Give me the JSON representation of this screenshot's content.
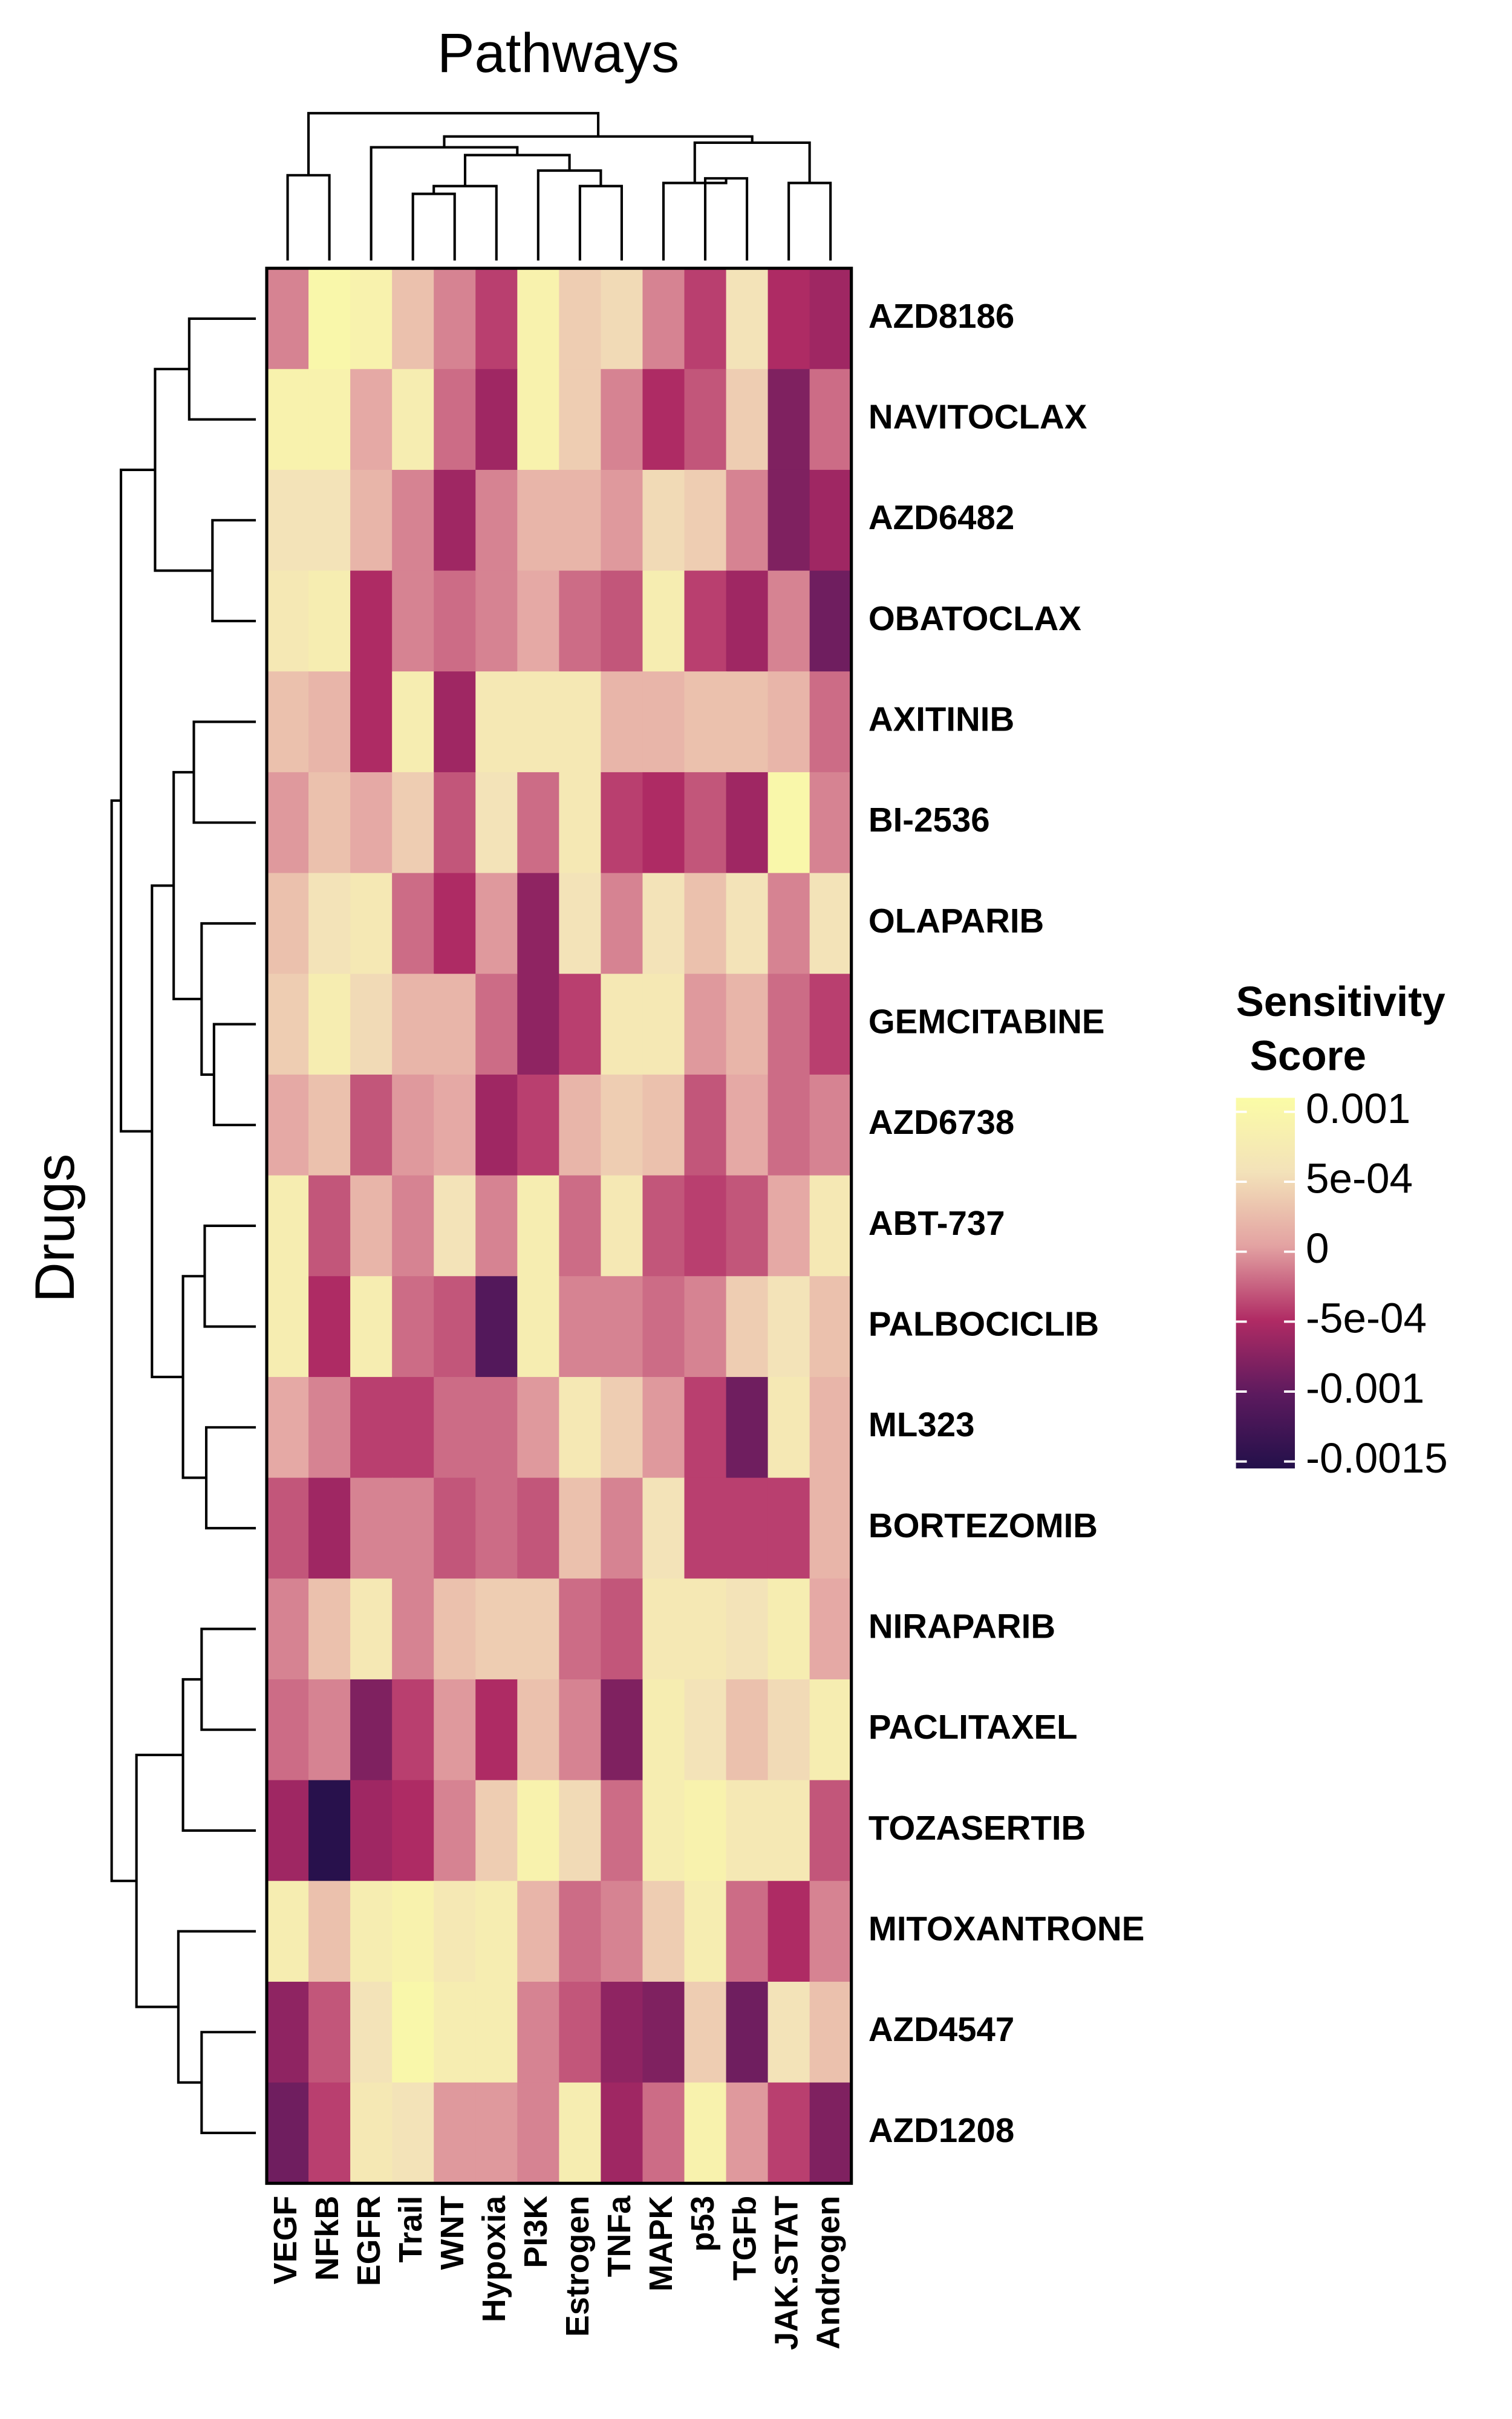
{
  "chart_data": {
    "type": "heatmap",
    "title": "Pathways",
    "y_label": "Drugs",
    "legend_title": [
      "Sensitivity",
      "Score"
    ],
    "x": [
      "VEGF",
      "NFkB",
      "EGFR",
      "Trail",
      "WNT",
      "Hypoxia",
      "PI3K",
      "Estrogen",
      "TNFa",
      "MAPK",
      "p53",
      "TGFb",
      "JAK.STAT",
      "Androgen"
    ],
    "y": [
      "AZD8186",
      "NAVITOCLAX",
      "AZD6482",
      "OBATOCLAX",
      "AXITINIB",
      "BI-2536",
      "OLAPARIB",
      "GEMCITABINE",
      "AZD6738",
      "ABT-737",
      "PALBOCICLIB",
      "ML323",
      "BORTEZOMIB",
      "NIRAPARIB",
      "PACLITAXEL",
      "TOZASERTIB",
      "MITOXANTRONE",
      "AZD4547",
      "AZD1208"
    ],
    "values": [
      [
        -0.0001,
        0.001,
        0.0009,
        0.0003,
        -0.0001,
        -0.0004,
        0.0009,
        0.0004,
        0.0005,
        -0.0001,
        -0.0004,
        0.0006,
        -0.0005,
        -0.0006
      ],
      [
        0.0009,
        0.0009,
        0.0001,
        0.0008,
        -0.0002,
        -0.0006,
        0.0009,
        0.0004,
        -0.0001,
        -0.0005,
        -0.0003,
        0.0004,
        -0.0008,
        -0.0002
      ],
      [
        0.0006,
        0.0006,
        0.0002,
        -0.0001,
        -0.0006,
        -0.0001,
        0.0002,
        0.0002,
        0,
        0.0005,
        0.0004,
        -0.0001,
        -0.0008,
        -0.0006
      ],
      [
        0.0007,
        0.0008,
        -0.0005,
        -0.0001,
        -0.0002,
        -0.0001,
        0.0001,
        -0.0002,
        -0.0003,
        0.0008,
        -0.0004,
        -0.0006,
        -0.0001,
        -0.0009
      ],
      [
        0.0003,
        0.0002,
        -0.0005,
        0.0008,
        -0.0006,
        0.0007,
        0.0007,
        0.0007,
        0.0002,
        0.0002,
        0.0003,
        0.0003,
        0.0002,
        -0.0002
      ],
      [
        0,
        0.0003,
        0.0001,
        0.0004,
        -0.0003,
        0.0006,
        -0.0002,
        0.0007,
        -0.0004,
        -0.0005,
        -0.0003,
        -0.0006,
        0.001,
        -0.0001
      ],
      [
        0.0003,
        0.0006,
        0.0007,
        -0.0002,
        -0.0005,
        0,
        -0.0007,
        0.0006,
        -0.0001,
        0.0006,
        0.0003,
        0.0006,
        -0.0001,
        0.0006
      ],
      [
        0.0004,
        0.0008,
        0.0005,
        0.0002,
        0.0002,
        -0.0002,
        -0.0007,
        -0.0004,
        0.0007,
        0.0007,
        0,
        0.0002,
        -0.0002,
        -0.0004
      ],
      [
        0.0001,
        0.0003,
        -0.0003,
        0,
        0.0001,
        -0.0006,
        -0.0004,
        0.0002,
        0.0004,
        0.0003,
        -0.0003,
        0.0001,
        -0.0002,
        -0.0001
      ],
      [
        0.0008,
        -0.0003,
        0.0002,
        -0.0001,
        0.0006,
        -0.0001,
        0.0008,
        -0.0002,
        0.0007,
        -0.0003,
        -0.0004,
        -0.0003,
        0.0001,
        0.0007
      ],
      [
        0.0008,
        -0.0005,
        0.0008,
        -0.0002,
        -0.0003,
        -0.0011,
        0.0008,
        -0.0001,
        -0.0001,
        -0.0002,
        -0.0001,
        0.0004,
        0.0006,
        0.0003
      ],
      [
        0.0001,
        -0.0001,
        -0.0004,
        -0.0004,
        -0.0002,
        -0.0002,
        0,
        0.0007,
        0.0004,
        0,
        -0.0004,
        -0.0009,
        0.0007,
        0.0002
      ],
      [
        -0.0003,
        -0.0006,
        -0.0001,
        -0.0001,
        -0.0003,
        -0.0002,
        -0.0003,
        0.0003,
        -0.0001,
        0.0006,
        -0.0004,
        -0.0004,
        -0.0004,
        0.0002
      ],
      [
        -0.0001,
        0.0003,
        0.0007,
        -0.0001,
        0.0003,
        0.0004,
        0.0004,
        -0.0002,
        -0.0003,
        0.0007,
        0.0007,
        0.0006,
        0.0008,
        0.0001
      ],
      [
        -0.0002,
        -0.0001,
        -0.0008,
        -0.0004,
        0,
        -0.0005,
        0.0003,
        -0.0001,
        -0.0008,
        0.0008,
        0.0006,
        0.0003,
        0.0005,
        0.0008
      ],
      [
        -0.0006,
        -0.0015,
        -0.0006,
        -0.0005,
        -0.0001,
        0.0004,
        0.0009,
        0.0005,
        -0.0002,
        0.0008,
        0.0009,
        0.0007,
        0.0007,
        -0.0003
      ],
      [
        0.0008,
        0.0003,
        0.0008,
        0.0009,
        0.0007,
        0.0008,
        0.0002,
        -0.0002,
        -0.0001,
        0.0004,
        0.0008,
        -0.0002,
        -0.0005,
        -0.0001
      ],
      [
        -0.0007,
        -0.0003,
        0.0006,
        0.001,
        0.0008,
        0.0008,
        -0.0001,
        -0.0003,
        -0.0007,
        -0.0008,
        0.0004,
        -0.0009,
        0.0006,
        0.0003
      ],
      [
        -0.0009,
        -0.0004,
        0.0007,
        0.0006,
        0,
        0,
        -0.0001,
        0.0008,
        -0.0006,
        -0.0002,
        0.0009,
        0,
        -0.0004,
        -0.0008
      ]
    ],
    "zlim": [
      -0.00155,
      0.0011
    ],
    "zticks": [
      0.001,
      {
        "value": 0.0005,
        "label": "5e-04"
      },
      0,
      {
        "value": -0.0005,
        "label": "-5e-04"
      },
      -0.001,
      -0.0015
    ],
    "colors": [
      "#23104a",
      "#5c1a5e",
      "#b02b64",
      "#e3a2a2",
      "#f3e2b9",
      "#fbfca6"
    ]
  }
}
